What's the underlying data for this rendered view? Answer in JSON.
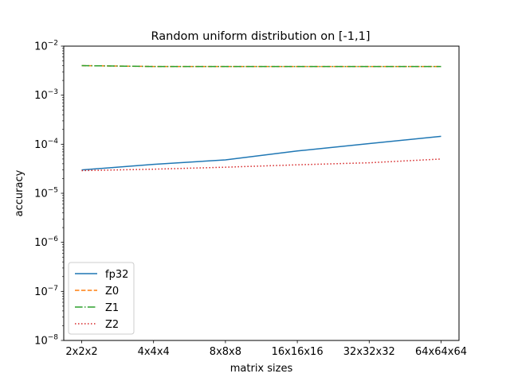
{
  "chart_data": {
    "type": "line",
    "title": "Random uniform distribution on [-1,1]",
    "xlabel": "matrix sizes",
    "ylabel": "accuracy",
    "yscale": "log",
    "ylim": [
      1e-08,
      0.01
    ],
    "grid": false,
    "legend_position": "lower-left",
    "categories": [
      "2x2x2",
      "4x4x4",
      "8x8x8",
      "16x16x16",
      "32x32x32",
      "64x64x64"
    ],
    "y_ticks": [
      {
        "base": "10",
        "exp": "−8",
        "value": 1e-08
      },
      {
        "base": "10",
        "exp": "−7",
        "value": 1e-07
      },
      {
        "base": "10",
        "exp": "−6",
        "value": 1e-06
      },
      {
        "base": "10",
        "exp": "−5",
        "value": 1e-05
      },
      {
        "base": "10",
        "exp": "−4",
        "value": 0.0001
      },
      {
        "base": "10",
        "exp": "−3",
        "value": 0.001
      },
      {
        "base": "10",
        "exp": "−2",
        "value": 0.01
      }
    ],
    "series": [
      {
        "name": "fp32",
        "color": "#1f77b4",
        "dash": "solid",
        "values": [
          3e-05,
          3.9e-05,
          4.8e-05,
          7.3e-05,
          0.000103,
          0.000145
        ]
      },
      {
        "name": "Z0",
        "color": "#ff7f0e",
        "dash": "dashed",
        "values": [
          0.004,
          0.00385,
          0.00385,
          0.00385,
          0.00385,
          0.00385
        ]
      },
      {
        "name": "Z1",
        "color": "#2ca02c",
        "dash": "dashdot",
        "values": [
          0.004,
          0.00385,
          0.00385,
          0.00385,
          0.00385,
          0.00385
        ]
      },
      {
        "name": "Z2",
        "color": "#d62728",
        "dash": "dotted",
        "values": [
          2.9e-05,
          3.1e-05,
          3.4e-05,
          3.8e-05,
          4.2e-05,
          5e-05
        ]
      }
    ]
  }
}
